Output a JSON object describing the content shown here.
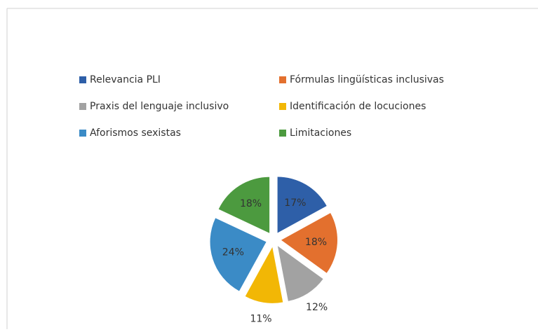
{
  "chart_data": {
    "type": "pie",
    "categories": [
      "Relevancia PLI",
      "Fórmulas lingüísticas inclusivas",
      "Praxis del lenguaje inclusivo",
      "Identificación de locuciones",
      "Aforismos sexistas",
      "Limitaciones"
    ],
    "values": [
      17,
      18,
      12,
      11,
      24,
      18
    ],
    "value_labels": [
      "17%",
      "18%",
      "12%",
      "11%",
      "24%",
      "18%"
    ],
    "colors": [
      "#2e5fa8",
      "#e3702e",
      "#a2a2a2",
      "#f2b705",
      "#3b8bc6",
      "#4c9a3f"
    ],
    "exploded": true
  }
}
